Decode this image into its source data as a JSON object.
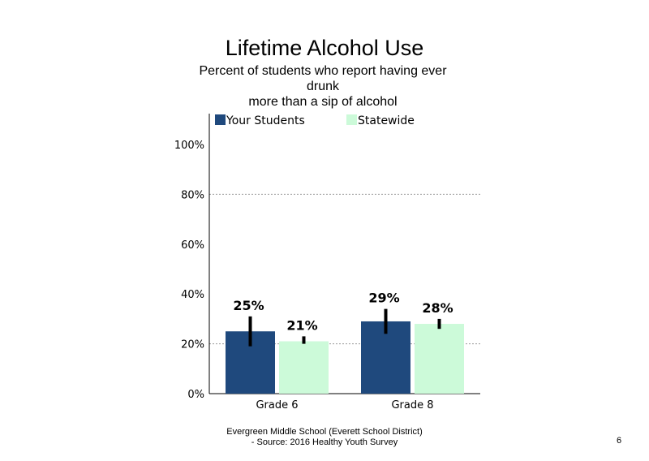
{
  "chart_data": {
    "type": "bar",
    "title": "Lifetime Alcohol Use",
    "subtitle_lines": [
      "Percent of students who report having ever",
      "drunk",
      "more than a sip of alcohol"
    ],
    "categories": [
      "Grade 6",
      "Grade 8"
    ],
    "series": [
      {
        "name": "Your Students",
        "color": "#1f497d",
        "values": [
          25,
          29
        ],
        "labels": [
          "25%",
          "29%"
        ],
        "error": [
          [
            19,
            31
          ],
          [
            24,
            34
          ]
        ]
      },
      {
        "name": "Statewide",
        "color": "#ccfad9",
        "values": [
          21,
          28
        ],
        "labels": [
          "21%",
          "28%"
        ],
        "error": [
          [
            20,
            23
          ],
          [
            26,
            30
          ]
        ]
      }
    ],
    "yticks": [
      "0%",
      "20%",
      "40%",
      "60%",
      "80%",
      "100%"
    ],
    "ylim": [
      0,
      100
    ],
    "grid": "dotted, at 20% and 80%",
    "legend_position": "top"
  },
  "footer": {
    "line1": "Evergreen Middle School (Everett School District)",
    "line2": "- Source: 2016 Healthy  Youth Survey"
  },
  "page_number": "6"
}
